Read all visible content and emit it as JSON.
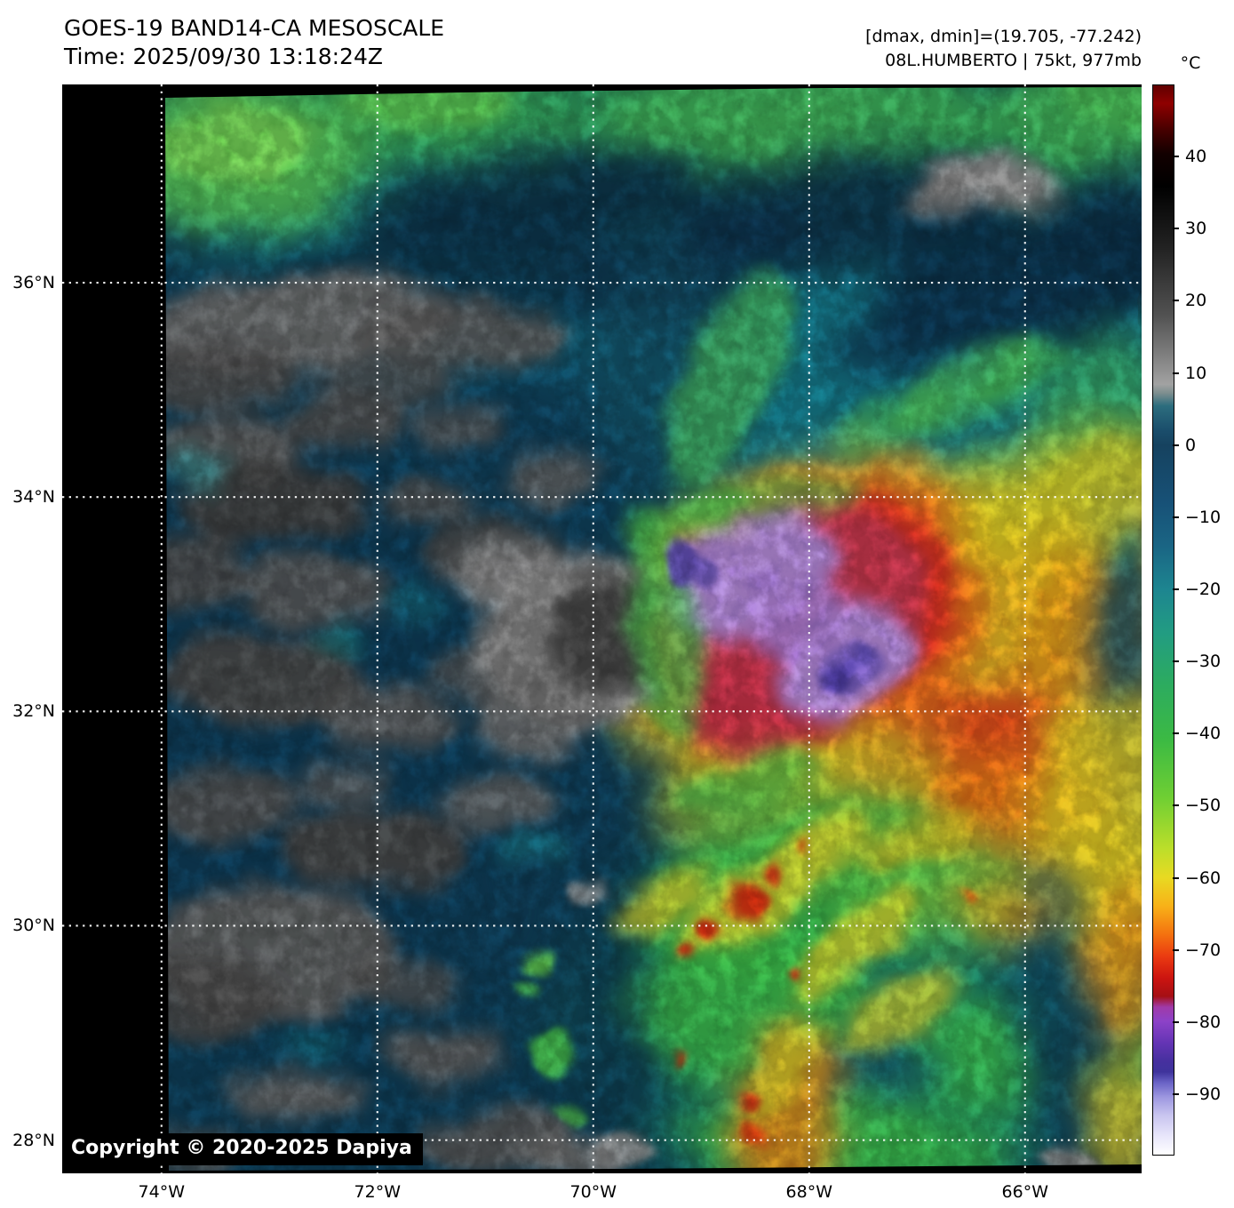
{
  "header": {
    "title": "GOES-19 BAND14-CA MESOSCALE",
    "time_line": "Time: 2025/09/30 13:18:24Z",
    "stats_line": "[dmax, dmin]=(19.705, -77.242)",
    "storm_line": "08L.HUMBERTO | 75kt, 977mb"
  },
  "map": {
    "copyright": "Copyright © 2020-2025 Dapiya",
    "grid_color": "#ffffff",
    "background": "#000000",
    "extent": {
      "lon_min": -74.92,
      "lon_max": -64.92,
      "lat_min": 27.69,
      "lat_max": 37.85
    },
    "lat_gridlines": [
      {
        "value": 36,
        "label": "36°N"
      },
      {
        "value": 34,
        "label": "34°N"
      },
      {
        "value": 32,
        "label": "32°N"
      },
      {
        "value": 30,
        "label": "30°N"
      },
      {
        "value": 28,
        "label": "28°N"
      }
    ],
    "lon_gridlines": [
      {
        "value": -74,
        "label": "74°W"
      },
      {
        "value": -72,
        "label": "72°W"
      },
      {
        "value": -70,
        "label": "70°W"
      },
      {
        "value": -68,
        "label": "68°W"
      },
      {
        "value": -66,
        "label": "66°W"
      }
    ]
  },
  "colorbar": {
    "unit": "°C",
    "vmax": 50,
    "vmin": -98.5,
    "ticks": [
      {
        "value": 40,
        "label": "40"
      },
      {
        "value": 30,
        "label": "30"
      },
      {
        "value": 20,
        "label": "20"
      },
      {
        "value": 10,
        "label": "10"
      },
      {
        "value": 0,
        "label": "0"
      },
      {
        "value": -10,
        "label": "−10"
      },
      {
        "value": -20,
        "label": "−20"
      },
      {
        "value": -30,
        "label": "−30"
      },
      {
        "value": -40,
        "label": "−40"
      },
      {
        "value": -50,
        "label": "−50"
      },
      {
        "value": -60,
        "label": "−60"
      },
      {
        "value": -70,
        "label": "−70"
      },
      {
        "value": -80,
        "label": "−80"
      },
      {
        "value": -90,
        "label": "−90"
      }
    ],
    "gradient": [
      {
        "t": 50,
        "c": "#600000"
      },
      {
        "t": 47.5,
        "c": "#8f0000"
      },
      {
        "t": 44,
        "c": "#4a0000"
      },
      {
        "t": 40.5,
        "c": "#120000"
      },
      {
        "t": 36,
        "c": "#000000"
      },
      {
        "t": 27,
        "c": "#242424"
      },
      {
        "t": 18,
        "c": "#525252"
      },
      {
        "t": 11,
        "c": "#8c8c8c"
      },
      {
        "t": 8.5,
        "c": "#a2a2a2"
      },
      {
        "t": 7.2,
        "c": "#7b8d8e"
      },
      {
        "t": 5.5,
        "c": "#2c6d7e"
      },
      {
        "t": 2,
        "c": "#1a4d6b"
      },
      {
        "t": 0,
        "c": "#16425f"
      },
      {
        "t": -8,
        "c": "#175177"
      },
      {
        "t": -14,
        "c": "#1a6584"
      },
      {
        "t": -20,
        "c": "#1d8590"
      },
      {
        "t": -26,
        "c": "#229c82"
      },
      {
        "t": -33,
        "c": "#2cab60"
      },
      {
        "t": -41,
        "c": "#3cba43"
      },
      {
        "t": -49,
        "c": "#70cf33"
      },
      {
        "t": -56,
        "c": "#bcde2a"
      },
      {
        "t": -60,
        "c": "#e8da22"
      },
      {
        "t": -64,
        "c": "#f8b118"
      },
      {
        "t": -68,
        "c": "#f4700f"
      },
      {
        "t": -71,
        "c": "#ea3a11"
      },
      {
        "t": -74,
        "c": "#cc1410"
      },
      {
        "t": -76.5,
        "c": "#a50f14"
      },
      {
        "t": -78,
        "c": "#a03aa8"
      },
      {
        "t": -80,
        "c": "#8c42c8"
      },
      {
        "t": -83,
        "c": "#6434b4"
      },
      {
        "t": -85.5,
        "c": "#46309f"
      },
      {
        "t": -87,
        "c": "#3f339c"
      },
      {
        "t": -88.5,
        "c": "#6a63c6"
      },
      {
        "t": -90.5,
        "c": "#9d97e0"
      },
      {
        "t": -93,
        "c": "#c8c4ef"
      },
      {
        "t": -96,
        "c": "#e9e7fb"
      },
      {
        "t": -98.5,
        "c": "#ffffff"
      }
    ]
  },
  "imagery_description": "Enhanced infrared satellite image: hurricane central dense overcast (violet/red cold tops) near 33.3N 68.5W with orange-yellow cirrus shield to the east, gray low clouds to the west, and convective bands with embedded red cells to the south."
}
